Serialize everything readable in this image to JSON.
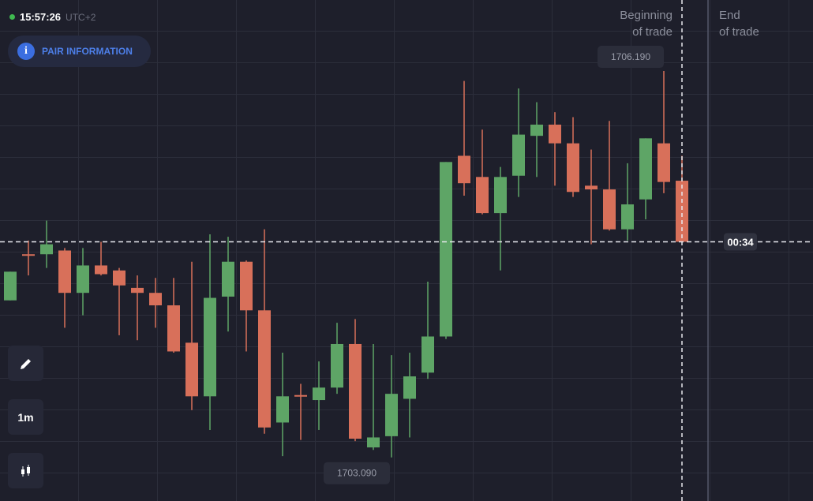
{
  "header": {
    "time": "15:57:26",
    "timezone": "UTC+2",
    "pair_button": "PAIR INFORMATION"
  },
  "toolbar": {
    "timeframe": "1m"
  },
  "trade_labels": {
    "beginning": [
      "Beginning",
      "of trade"
    ],
    "end": [
      "End",
      "of trade"
    ]
  },
  "timer": "00:34",
  "chart_data": {
    "type": "candlestick",
    "up_color": "#5ea566",
    "down_color": "#d8705a",
    "ylim": [
      1702.74,
      1706.76
    ],
    "open": [
      1704.35,
      1704.72,
      1704.72,
      1704.75,
      1704.41,
      1704.63,
      1704.59,
      1704.45,
      1704.41,
      1704.31,
      1704.01,
      1703.58,
      1704.38,
      1704.66,
      1704.27,
      1703.37,
      1703.59,
      1703.55,
      1703.65,
      1704.0,
      1703.17,
      1703.26,
      1703.56,
      1703.77,
      1704.06,
      1705.51,
      1705.34,
      1705.05,
      1705.35,
      1705.67,
      1705.76,
      1705.61,
      1705.27,
      1705.24,
      1704.92,
      1705.16,
      1705.61,
      1705.31
    ],
    "high": [
      1704.58,
      1704.83,
      1704.99,
      1704.77,
      1704.77,
      1704.82,
      1704.61,
      1704.55,
      1704.53,
      1704.53,
      1704.66,
      1704.88,
      1704.86,
      1704.67,
      1704.92,
      1703.93,
      1703.68,
      1703.86,
      1704.17,
      1704.2,
      1704.0,
      1703.91,
      1703.93,
      1704.5,
      1705.46,
      1706.11,
      1705.72,
      1705.42,
      1706.05,
      1705.94,
      1705.86,
      1705.82,
      1705.56,
      1705.79,
      1705.45,
      1705.65,
      1706.19,
      1705.51
    ],
    "low": [
      1704.35,
      1704.55,
      1704.61,
      1704.13,
      1704.23,
      1704.55,
      1704.07,
      1704.03,
      1704.13,
      1703.93,
      1703.47,
      1703.31,
      1704.1,
      1703.94,
      1703.28,
      1703.1,
      1703.23,
      1703.31,
      1703.6,
      1703.22,
      1703.15,
      1703.09,
      1703.25,
      1703.72,
      1704.04,
      1705.19,
      1705.04,
      1704.59,
      1705.18,
      1705.34,
      1705.27,
      1705.18,
      1704.8,
      1704.91,
      1704.83,
      1705.0,
      1705.21,
      1704.82
    ],
    "close": [
      1704.58,
      1704.71,
      1704.8,
      1704.41,
      1704.63,
      1704.56,
      1704.47,
      1704.41,
      1704.31,
      1703.94,
      1703.58,
      1704.37,
      1704.66,
      1704.27,
      1703.33,
      1703.58,
      1703.58,
      1703.65,
      1704.0,
      1703.24,
      1703.25,
      1703.6,
      1703.74,
      1704.06,
      1705.46,
      1705.29,
      1705.05,
      1705.34,
      1705.68,
      1705.76,
      1705.61,
      1705.22,
      1705.24,
      1704.92,
      1705.12,
      1705.65,
      1705.3,
      1704.82
    ],
    "annotations": [
      {
        "value": 1706.19,
        "label": "1706.190"
      },
      {
        "value": 1703.09,
        "label": "1703.090"
      }
    ]
  }
}
